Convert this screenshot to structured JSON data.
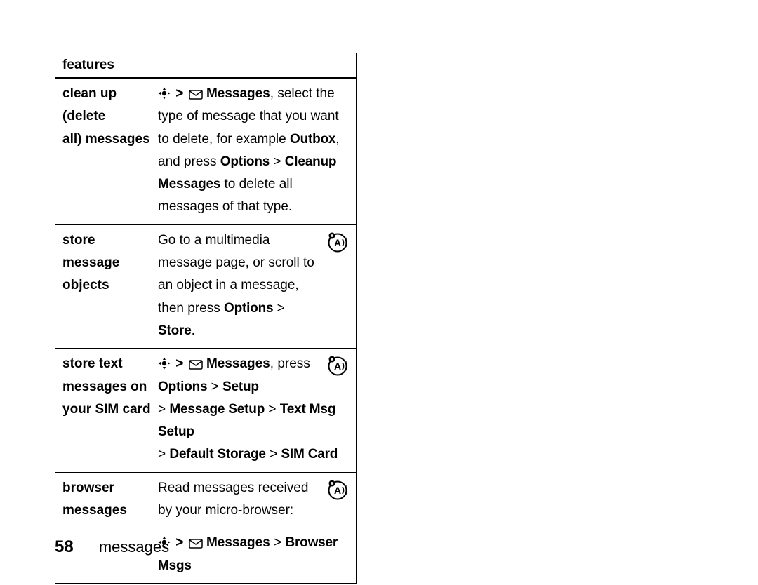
{
  "table": {
    "header": "features",
    "rows": [
      {
        "left_lines": [
          "clean up (delete",
          "all) messages"
        ],
        "right": {
          "parts": [
            {
              "t": "nav"
            },
            {
              "t": "gt"
            },
            {
              "t": "mail"
            },
            {
              "t": "text",
              "v": " "
            },
            {
              "t": "bold",
              "v": "Messages"
            },
            {
              "t": "text",
              "v": ", select the type of message that you want to delete, for example "
            },
            {
              "t": "cond",
              "v": "Outbox"
            },
            {
              "t": "text",
              "v": ", and press "
            },
            {
              "t": "cond",
              "v": "Options"
            },
            {
              "t": "text",
              "v": " > "
            },
            {
              "t": "cond",
              "v": "Cleanup Messages"
            },
            {
              "t": "text",
              "v": " to delete all messages of that type."
            }
          ],
          "badge": false
        }
      },
      {
        "left_lines": [
          "store message",
          "objects"
        ],
        "right": {
          "parts": [
            {
              "t": "text",
              "v": "Go to a multimedia message page, or scroll to an object in a message, then press "
            },
            {
              "t": "cond",
              "v": "Options"
            },
            {
              "t": "text",
              "v": " > "
            },
            {
              "t": "cond",
              "v": "Store"
            },
            {
              "t": "text",
              "v": "."
            }
          ],
          "badge": true,
          "first_line_pad": true
        }
      },
      {
        "left_lines": [
          "store text",
          "messages on",
          "your SIM card"
        ],
        "right": {
          "parts": [
            {
              "t": "nav"
            },
            {
              "t": "gt"
            },
            {
              "t": "mail"
            },
            {
              "t": "text",
              "v": " "
            },
            {
              "t": "bold",
              "v": "Messages"
            },
            {
              "t": "text",
              "v": ", press"
            },
            {
              "t": "br"
            },
            {
              "t": "cond",
              "v": "Options"
            },
            {
              "t": "text",
              "v": " > "
            },
            {
              "t": "cond",
              "v": "Setup"
            },
            {
              "t": "br"
            },
            {
              "t": "text",
              "v": "> "
            },
            {
              "t": "cond",
              "v": "Message Setup"
            },
            {
              "t": "text",
              "v": " > "
            },
            {
              "t": "cond",
              "v": "Text Msg Setup"
            },
            {
              "t": "br"
            },
            {
              "t": "text",
              "v": "> "
            },
            {
              "t": "cond",
              "v": "Default Storage"
            },
            {
              "t": "text",
              "v": " > "
            },
            {
              "t": "cond",
              "v": "SIM Card"
            }
          ],
          "badge": true
        }
      },
      {
        "left_lines": [
          "browser",
          "messages"
        ],
        "right": {
          "parts": [
            {
              "t": "text",
              "v": "Read messages received by your micro-browser:"
            },
            {
              "t": "brgap"
            },
            {
              "t": "nav"
            },
            {
              "t": "gt"
            },
            {
              "t": "mail"
            },
            {
              "t": "text",
              "v": " "
            },
            {
              "t": "bold",
              "v": "Messages"
            },
            {
              "t": "text",
              "v": " > "
            },
            {
              "t": "cond",
              "v": "Browser Msgs"
            }
          ],
          "badge": true,
          "first_line_pad": true
        }
      }
    ]
  },
  "footer": {
    "page_number": "58",
    "section": "messages"
  },
  "colors": {
    "text": "#000000",
    "background": "#ffffff",
    "border": "#000000"
  }
}
